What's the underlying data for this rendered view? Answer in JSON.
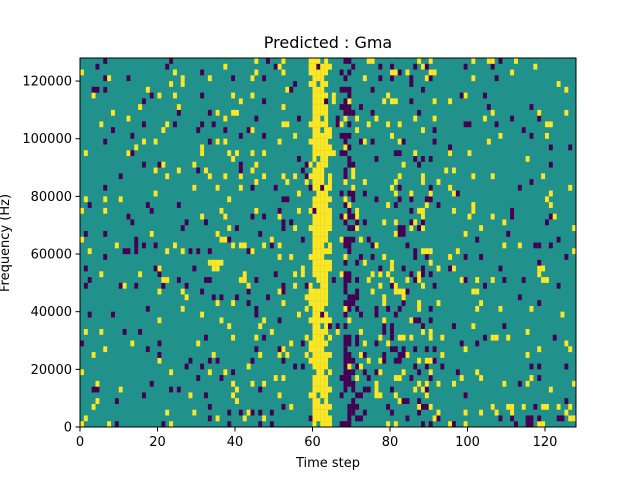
{
  "chart_data": {
    "type": "heatmap",
    "title": "Predicted : Gma",
    "xlabel": "Time step",
    "ylabel": "Frequency (Hz)",
    "xlim": [
      0,
      128
    ],
    "ylim": [
      0,
      128000
    ],
    "xticks": [
      0,
      20,
      40,
      60,
      80,
      100,
      120
    ],
    "yticks": [
      0,
      20000,
      40000,
      60000,
      80000,
      100000,
      120000
    ],
    "n_time_steps": 128,
    "n_freq_bins": 64,
    "legend": "none",
    "grid": false,
    "colors": {
      "background": "#21918c",
      "low": "#440154",
      "high": "#fde725"
    },
    "description": "Binary-valued spectrogram mask: teal background with scattered purple (low) and yellow (high) cells; dense yellow band near time step 60-63 across all frequencies and a dense purple band near steps 67-70.",
    "dense_bands": [
      {
        "value": "high",
        "x_start": 59,
        "x_end": 64
      },
      {
        "value": "low",
        "x_start": 67,
        "x_end": 70
      }
    ]
  }
}
